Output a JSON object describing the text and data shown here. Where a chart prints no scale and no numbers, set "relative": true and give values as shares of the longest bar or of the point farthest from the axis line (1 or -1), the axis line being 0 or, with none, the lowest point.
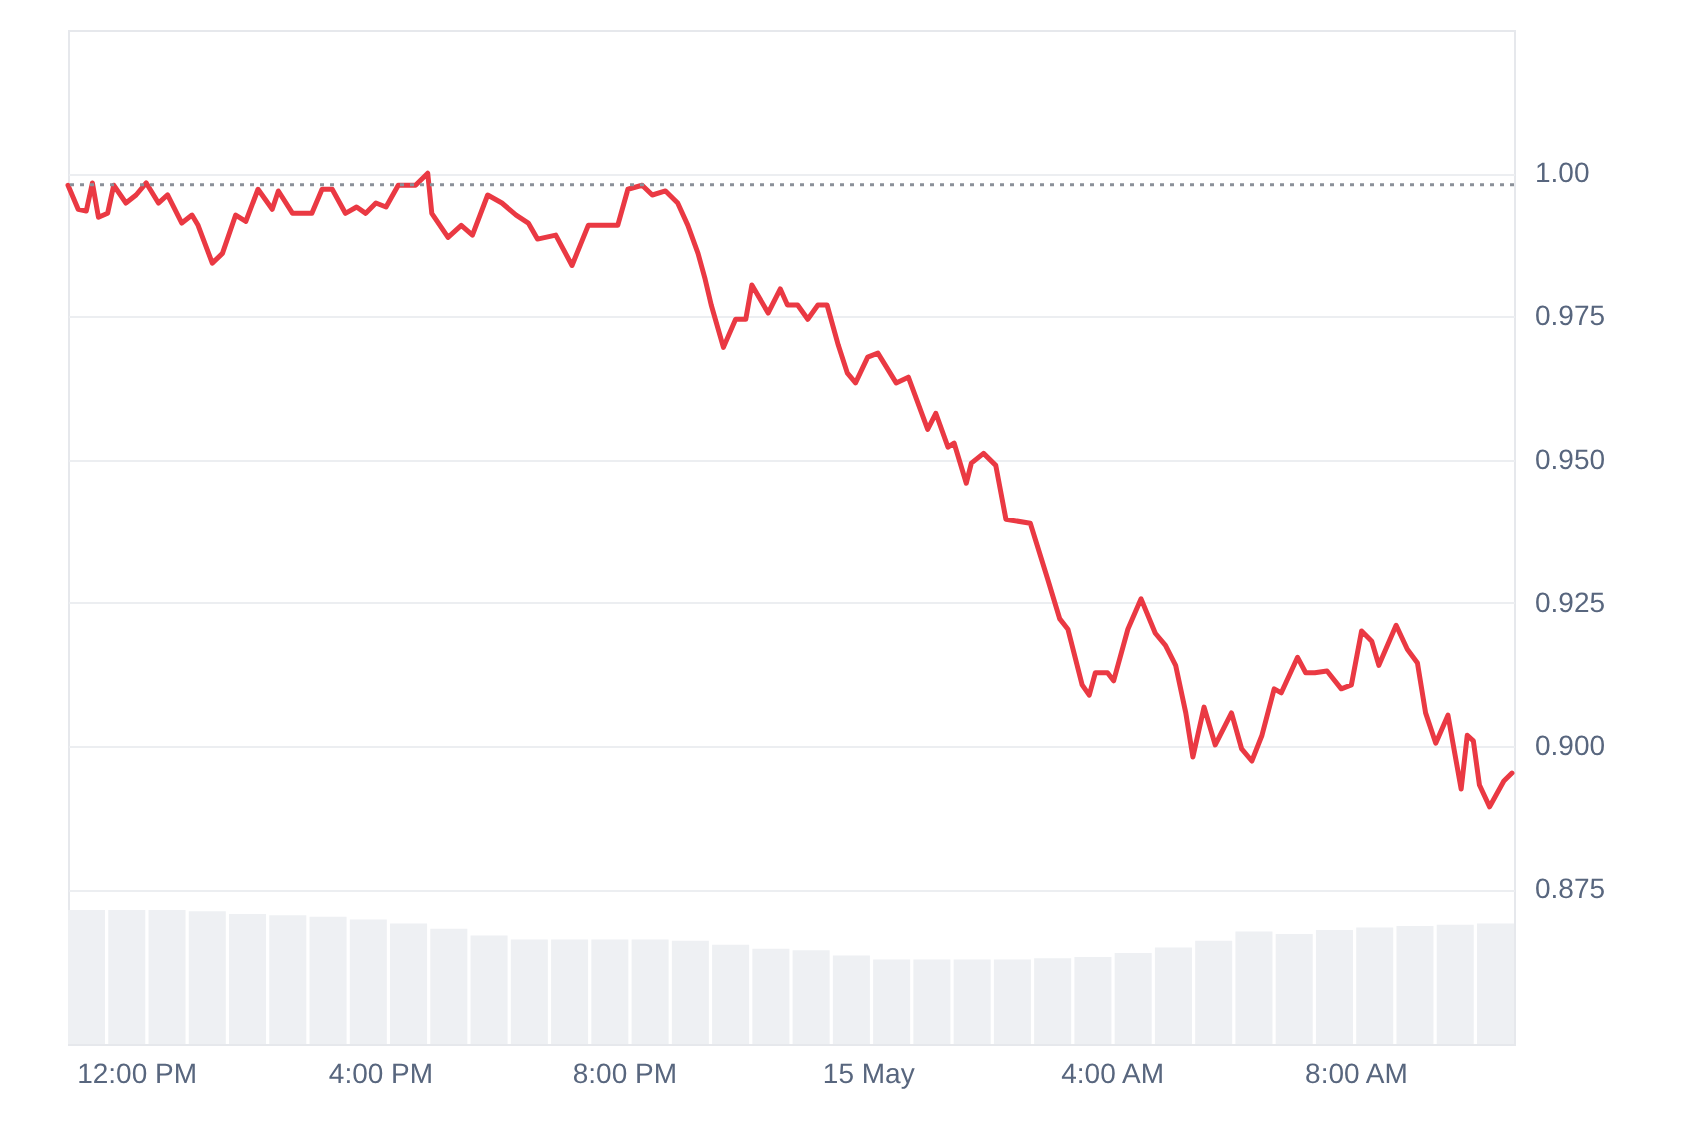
{
  "chart_data": [
    {
      "type": "line",
      "x": [
        "--05-14T10:53",
        "--05-14T11:03",
        "--05-14T11:11",
        "--05-14T11:17",
        "--05-14T11:23",
        "--05-14T11:32",
        "--05-14T11:38",
        "--05-14T11:50",
        "--05-14T12:00",
        "--05-14T12:10",
        "--05-14T12:22",
        "--05-14T12:31",
        "--05-14T12:45",
        "--05-14T12:55",
        "--05-14T13:01",
        "--05-14T13:15",
        "--05-14T13:25",
        "--05-14T13:38",
        "--05-14T13:48",
        "--05-14T14:00",
        "--05-14T14:14",
        "--05-14T14:20",
        "--05-14T14:34",
        "--05-14T14:53",
        "--05-14T15:03",
        "--05-14T15:13",
        "--05-14T15:26",
        "--05-14T15:37",
        "--05-14T15:46",
        "--05-14T15:56",
        "--05-14T16:06",
        "--05-14T16:18",
        "--05-14T16:35",
        "--05-14T16:47",
        "--05-14T16:51",
        "--05-14T17:07",
        "--05-14T17:20",
        "--05-14T17:31",
        "--05-14T17:46",
        "--05-14T18:00",
        "--05-14T18:14",
        "--05-14T18:26",
        "--05-14T18:35",
        "--05-14T18:53",
        "--05-14T19:09",
        "--05-14T19:25",
        "--05-14T19:44",
        "--05-14T19:54",
        "--05-14T20:04",
        "--05-14T20:18",
        "--05-14T20:28",
        "--05-14T20:41",
        "--05-14T20:53",
        "--05-14T21:03",
        "--05-14T21:13",
        "--05-14T21:20",
        "--05-14T21:26",
        "--05-14T21:38",
        "--05-14T21:50",
        "--05-14T22:00",
        "--05-14T22:06",
        "--05-14T22:22",
        "--05-14T22:34",
        "--05-14T22:41",
        "--05-14T22:51",
        "--05-14T23:01",
        "--05-14T23:11",
        "--05-14T23:20",
        "--05-14T23:31",
        "--05-14T23:40",
        "--05-14T23:48",
        "--05-15T00:00",
        "--05-15T00:10",
        "--05-15T00:28",
        "--05-15T00:40",
        "--05-15T00:59",
        "--05-15T01:07",
        "--05-15T01:19",
        "--05-15T01:25",
        "--05-15T01:37",
        "--05-15T01:42",
        "--05-15T01:54",
        "--05-15T02:06",
        "--05-15T02:16",
        "--05-15T02:40",
        "--05-15T02:57",
        "--05-15T03:09",
        "--05-15T03:17",
        "--05-15T03:31",
        "--05-15T03:38",
        "--05-15T03:44",
        "--05-15T03:56",
        "--05-15T04:02",
        "--05-15T04:16",
        "--05-15T04:29",
        "--05-15T04:43",
        "--05-15T04:53",
        "--05-15T05:03",
        "--05-15T05:13",
        "--05-15T05:20",
        "--05-15T05:31",
        "--05-15T05:42",
        "--05-15T05:58",
        "--05-15T06:08",
        "--05-15T06:18",
        "--05-15T06:28",
        "--05-15T06:40",
        "--05-15T06:47",
        "--05-15T07:03",
        "--05-15T07:11",
        "--05-15T07:20",
        "--05-15T07:32",
        "--05-15T07:46",
        "--05-15T07:56",
        "--05-15T08:06",
        "--05-15T08:16",
        "--05-15T08:23",
        "--05-15T08:40",
        "--05-15T08:51",
        "--05-15T09:01",
        "--05-15T09:09",
        "--05-15T09:19",
        "--05-15T09:31",
        "--05-15T09:44",
        "--05-15T09:50",
        "--05-15T09:56",
        "--05-15T10:02",
        "--05-15T10:12",
        "--05-15T10:26",
        "--05-15T10:34"
      ],
      "series": [
        {
          "color": "#ea3943",
          "values": [
            0.9979,
            0.9937,
            0.9934,
            0.9983,
            0.9923,
            0.993,
            0.9979,
            0.9948,
            0.9962,
            0.9983,
            0.9948,
            0.9962,
            0.9913,
            0.9927,
            0.9909,
            0.9843,
            0.986,
            0.9927,
            0.9916,
            0.9972,
            0.9937,
            0.9969,
            0.993,
            0.993,
            0.9972,
            0.9972,
            0.993,
            0.9941,
            0.993,
            0.9948,
            0.9941,
            0.9979,
            0.9979,
            1.0,
            0.993,
            0.9888,
            0.9909,
            0.9892,
            0.9962,
            0.9948,
            0.9927,
            0.9913,
            0.9885,
            0.9892,
            0.9839,
            0.9909,
            0.9909,
            0.9909,
            0.9972,
            0.9979,
            0.9962,
            0.9969,
            0.9948,
            0.9909,
            0.986,
            0.9815,
            0.977,
            0.9696,
            0.9745,
            0.9745,
            0.9805,
            0.9756,
            0.9798,
            0.977,
            0.977,
            0.9745,
            0.977,
            0.977,
            0.97,
            0.9651,
            0.9634,
            0.9679,
            0.9686,
            0.9634,
            0.9644,
            0.9553,
            0.9581,
            0.9522,
            0.9529,
            0.9459,
            0.9494,
            0.9511,
            0.949,
            0.9396,
            0.9389,
            0.9292,
            0.9222,
            0.9204,
            0.9107,
            0.9089,
            0.9128,
            0.9128,
            0.9114,
            0.9204,
            0.9257,
            0.9197,
            0.9176,
            0.9141,
            0.9058,
            0.8981,
            0.9068,
            0.9002,
            0.9058,
            0.8995,
            0.8974,
            0.9019,
            0.91,
            0.9093,
            0.9155,
            0.9128,
            0.9128,
            0.9131,
            0.91,
            0.9107,
            0.9201,
            0.9183,
            0.9141,
            0.9211,
            0.9169,
            0.9145,
            0.9058,
            0.9005,
            0.9054,
            0.8925,
            0.9019,
            0.9009,
            0.8932,
            0.8894,
            0.8939,
            0.8953
          ]
        }
      ],
      "xlim": [
        "--05-14T10:53",
        "--05-15T10:36"
      ],
      "xticks": [
        {
          "value": "--05-14T12:00",
          "label": "12:00 PM"
        },
        {
          "value": "--05-14T16:00",
          "label": "4:00 PM"
        },
        {
          "value": "--05-14T20:00",
          "label": "8:00 PM"
        },
        {
          "value": "--05-15T00:00",
          "label": "15 May"
        },
        {
          "value": "--05-15T04:00",
          "label": "4:00 AM"
        },
        {
          "value": "--05-15T08:00",
          "label": "8:00 AM"
        }
      ],
      "ylim": [
        0.848,
        1.025
      ],
      "yticks": [
        {
          "value": 0.875,
          "label": "0.875"
        },
        {
          "value": 0.9,
          "label": "0.900"
        },
        {
          "value": 0.925,
          "label": "0.925"
        },
        {
          "value": 0.95,
          "label": "0.950"
        },
        {
          "value": 0.975,
          "label": "0.975"
        },
        {
          "value": 1,
          "label": "1.00"
        }
      ],
      "grid": "y",
      "line_style": "solid",
      "ref_lines": [
        {
          "axis": "y",
          "value": 0.998,
          "color": "#8a9099",
          "line_style": "dotted"
        }
      ]
    },
    {
      "type": "bar",
      "relative": true,
      "color": "#eef0f3",
      "categories": [
        null,
        null,
        null,
        null,
        null,
        null,
        null,
        null,
        null,
        null,
        null,
        null,
        null,
        null,
        null,
        null,
        null,
        null,
        null,
        null,
        null,
        null,
        null,
        null,
        null,
        null,
        null,
        null,
        null,
        null,
        null,
        null,
        null,
        null,
        null,
        null
      ],
      "values": [
        1.0,
        1.0,
        1.0,
        0.99,
        0.97,
        0.96,
        0.95,
        0.93,
        0.9,
        0.86,
        0.81,
        0.78,
        0.78,
        0.78,
        0.78,
        0.77,
        0.74,
        0.71,
        0.7,
        0.66,
        0.63,
        0.63,
        0.63,
        0.63,
        0.64,
        0.65,
        0.68,
        0.72,
        0.77,
        0.84,
        0.82,
        0.85,
        0.87,
        0.88,
        0.89,
        0.9
      ]
    }
  ]
}
